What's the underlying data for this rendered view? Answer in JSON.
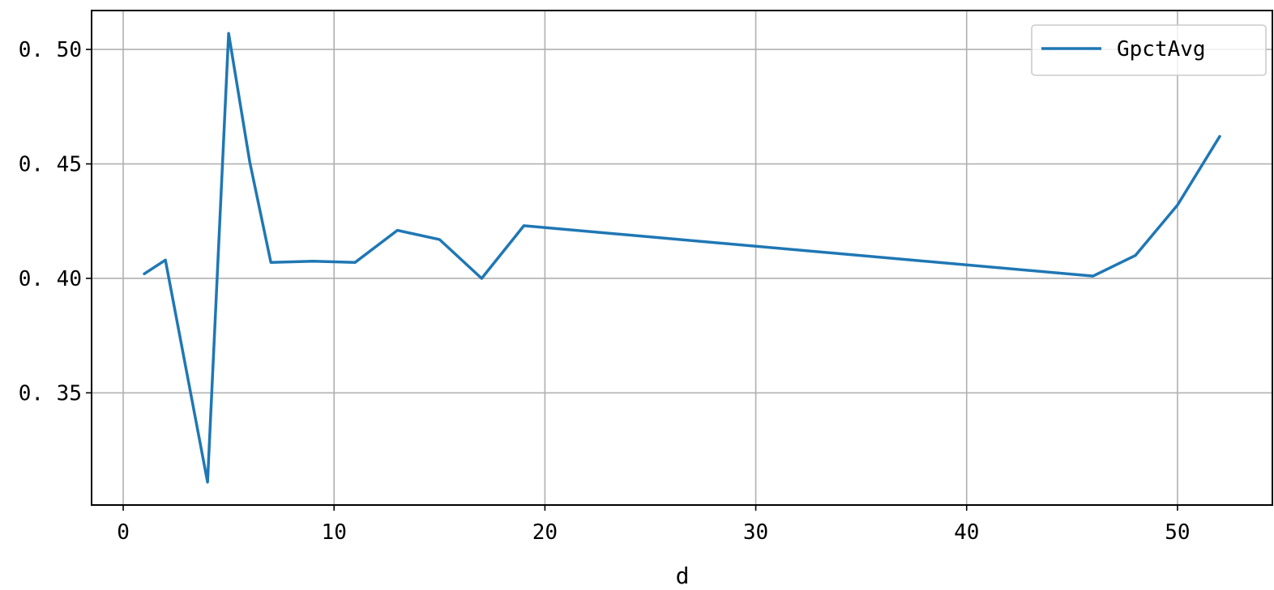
{
  "chart_data": {
    "type": "line",
    "title": "",
    "xlabel": "d",
    "ylabel": "",
    "xlim": [
      -1.5,
      54.5
    ],
    "ylim": [
      0.301,
      0.517
    ],
    "xticks": [
      0,
      10,
      20,
      30,
      40,
      50
    ],
    "xtick_labels": [
      "0",
      "10",
      "20",
      "30",
      "40",
      "50"
    ],
    "yticks": [
      0.35,
      0.4,
      0.45,
      0.5
    ],
    "ytick_labels": [
      "0. 35",
      "0. 40",
      "0. 45",
      "0. 50"
    ],
    "grid": true,
    "legend": {
      "placement": "upper-right",
      "entries": [
        "GpctAvg"
      ]
    },
    "series": [
      {
        "name": "GpctAvg",
        "color": "#1f77b4",
        "x": [
          1,
          2,
          4,
          5,
          6,
          7,
          9,
          11,
          13,
          15,
          17,
          19,
          46,
          48,
          50,
          52
        ],
        "y": [
          0.402,
          0.408,
          0.311,
          0.507,
          0.451,
          0.407,
          0.4075,
          0.407,
          0.421,
          0.417,
          0.4,
          0.423,
          0.401,
          0.41,
          0.432,
          0.462
        ]
      }
    ]
  }
}
